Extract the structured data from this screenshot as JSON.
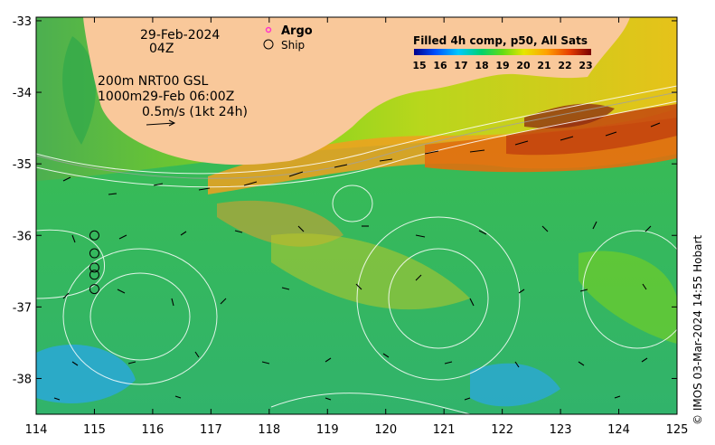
{
  "map": {
    "date": "29-Feb-2024",
    "time": "04Z",
    "model_line1": "200m NRT00 GSL",
    "model_line2": "1000m29-Feb 06:00Z",
    "vector_scale": "0.5m/s (1kt 24h)",
    "legend_argo": "Argo",
    "legend_ship": "Ship",
    "colorbar_title": "Filled 4h comp, p50, All Sats",
    "colorbar_ticks": [
      "15",
      "16",
      "17",
      "18",
      "19",
      "20",
      "21",
      "22",
      "23"
    ],
    "lon_ticks": [
      "114",
      "115",
      "116",
      "117",
      "118",
      "119",
      "120",
      "121",
      "122",
      "123",
      "124",
      "125"
    ],
    "lat_ticks": [
      "-33",
      "-34",
      "-35",
      "-36",
      "-37",
      "-38"
    ],
    "credit": "© IMOS 03-Mar-2024 14:55 Hobart",
    "colors": {
      "land": "#f9c89a",
      "argo": "#ff33cc",
      "sst_cold": "#1e90ff",
      "sst_mid": "#32cd32",
      "sst_warm": "#ff8c00",
      "sst_hot": "#8b1a1a"
    },
    "ship_track": [
      {
        "lon": 115.0,
        "lat": -36.0
      },
      {
        "lon": 115.0,
        "lat": -36.25
      },
      {
        "lon": 115.0,
        "lat": -36.45
      },
      {
        "lon": 115.0,
        "lat": -36.55
      },
      {
        "lon": 115.0,
        "lat": -36.75
      }
    ],
    "lon_range": [
      114,
      125
    ],
    "lat_range": [
      -38.5,
      -32.95
    ]
  }
}
